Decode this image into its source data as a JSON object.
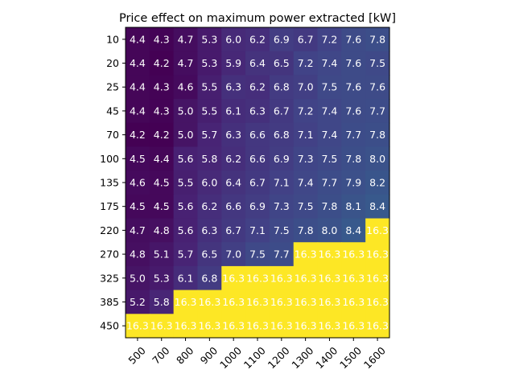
{
  "chart_data": {
    "type": "heatmap",
    "title": "Price effect on maximum power extracted [kW]",
    "xlabel": "",
    "ylabel": "",
    "x_categories": [
      "500",
      "700",
      "800",
      "900",
      "1000",
      "1100",
      "1200",
      "1300",
      "1400",
      "1500",
      "1600"
    ],
    "y_categories": [
      "10",
      "20",
      "25",
      "45",
      "70",
      "100",
      "135",
      "175",
      "220",
      "270",
      "325",
      "385",
      "450"
    ],
    "values": [
      [
        4.4,
        4.3,
        4.7,
        5.3,
        6.0,
        6.2,
        6.9,
        6.7,
        7.2,
        7.6,
        7.8
      ],
      [
        4.4,
        4.2,
        4.7,
        5.3,
        5.9,
        6.4,
        6.5,
        7.2,
        7.4,
        7.6,
        7.5
      ],
      [
        4.4,
        4.3,
        4.6,
        5.5,
        6.3,
        6.2,
        6.8,
        7.0,
        7.5,
        7.6,
        7.6
      ],
      [
        4.4,
        4.3,
        5.0,
        5.5,
        6.1,
        6.3,
        6.7,
        7.2,
        7.4,
        7.6,
        7.7
      ],
      [
        4.2,
        4.2,
        5.0,
        5.7,
        6.3,
        6.6,
        6.8,
        7.1,
        7.4,
        7.7,
        7.8
      ],
      [
        4.5,
        4.4,
        5.6,
        5.8,
        6.2,
        6.6,
        6.9,
        7.3,
        7.5,
        7.8,
        8.0
      ],
      [
        4.6,
        4.5,
        5.5,
        6.0,
        6.4,
        6.7,
        7.1,
        7.4,
        7.7,
        7.9,
        8.2
      ],
      [
        4.5,
        4.5,
        5.6,
        6.2,
        6.6,
        6.9,
        7.3,
        7.5,
        7.8,
        8.1,
        8.4
      ],
      [
        4.7,
        4.8,
        5.6,
        6.3,
        6.7,
        7.1,
        7.5,
        7.8,
        8.0,
        8.4,
        16.3
      ],
      [
        4.8,
        5.1,
        5.7,
        6.5,
        7.0,
        7.5,
        7.7,
        16.3,
        16.3,
        16.3,
        16.3
      ],
      [
        5.0,
        5.3,
        6.1,
        6.8,
        16.3,
        16.3,
        16.3,
        16.3,
        16.3,
        16.3,
        16.3
      ],
      [
        5.2,
        5.8,
        16.3,
        16.3,
        16.3,
        16.3,
        16.3,
        16.3,
        16.3,
        16.3,
        16.3
      ],
      [
        16.3,
        16.3,
        16.3,
        16.3,
        16.3,
        16.3,
        16.3,
        16.3,
        16.3,
        16.3,
        16.3
      ]
    ],
    "colormap": "viridis",
    "value_range": [
      4.2,
      16.3
    ],
    "annotation_color": "#ffffff",
    "grid": false,
    "legend": "none"
  }
}
